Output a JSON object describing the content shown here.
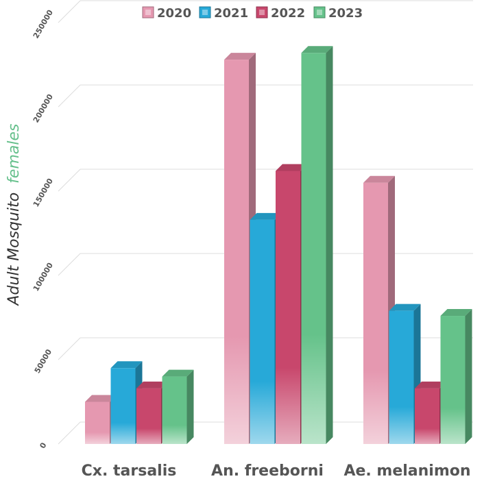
{
  "chart_data": {
    "type": "bar",
    "categories": [
      "Cx. tarsalis",
      "An. freeborni",
      "Ae. melanimon"
    ],
    "series": [
      {
        "name": "2020",
        "values": [
          25000,
          228000,
          155000
        ],
        "color": "#e598b0"
      },
      {
        "name": "2021",
        "values": [
          45000,
          133000,
          79000
        ],
        "color": "#27a9d8"
      },
      {
        "name": "2022",
        "values": [
          33000,
          162000,
          33000
        ],
        "color": "#c8476c"
      },
      {
        "name": "2023",
        "values": [
          40000,
          232000,
          76000
        ],
        "color": "#65c28a"
      }
    ],
    "ylabel_parts": {
      "dark": "Adult Mosquito",
      "green": "females"
    },
    "ylim": [
      0,
      250000
    ],
    "yticks": [
      "0",
      "50000",
      "100000",
      "150000",
      "200000",
      "250000"
    ],
    "legend_position": "top",
    "grid": true,
    "colors": {
      "text": "#555555",
      "ylabel_dark": "#333333",
      "ylabel_green": "#66c08c",
      "grid": "#dcdcdc"
    }
  }
}
